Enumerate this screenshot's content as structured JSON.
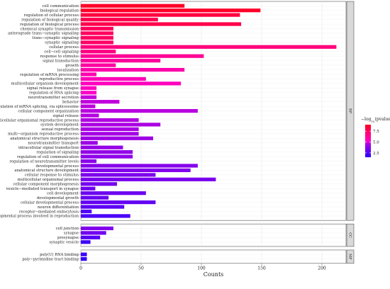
{
  "chart_data": {
    "type": "bar",
    "orientation": "horizontal",
    "xlabel": "Counts",
    "xlim": [
      0,
      220
    ],
    "xticks": [
      0,
      50,
      100,
      150,
      200
    ],
    "color_scale": {
      "legend_title_prefix": "−log",
      "legend_title_sub": "10",
      "legend_title_suffix": "(pvalue)",
      "ticks": [
        7.5,
        5.0,
        2.5
      ],
      "range": [
        1.5,
        9.0
      ],
      "color_high": "#ff0000",
      "color_low": "#0000ff"
    },
    "panels": [
      {
        "strip": "BP",
        "categories": [
          "cell communication",
          "biological regulation",
          "regulation of cellular process",
          "regulation of biological quality",
          "regulation of biological process",
          "chemical synaptic transmission",
          "anterograde trans−synaptic signaling",
          "trans−synaptic signaling",
          "synaptic signaling",
          "cellular process",
          "cell−cell signaling",
          "response to stimulus",
          "signal transduction",
          "growth",
          "localization",
          "regulation of mRNA processing",
          "reproductive process",
          "multicellular organism development",
          "signal release from synapse",
          "regulation of RNA splicing",
          "neurotransmitter secretion",
          "behavior",
          "regulation of mRNA splicing, via spliceosome",
          "cellular component organization",
          "signal release",
          "multicellular organismal reproductive process",
          "system development",
          "sexual reproduction",
          "multi−organism reproductive process",
          "anatomical structure morphogenesis",
          "neurotransmitter transport",
          "intracellular signal transduction",
          "regulation of signaling",
          "regulation of cell communication",
          "regulation of neurotransmitter levels",
          "developmental process",
          "anatomical structure development",
          "cellular response to stimulus",
          "multicellular organismal process",
          "cellular component morphogenesis",
          "vesicle−mediated transport in synapse",
          "cell development",
          "developmental growth",
          "cellular developmental process",
          "neuron differentiation",
          "receptor−mediated endocytosis",
          "developmental process involved in reproduction"
        ],
        "values": [
          86,
          149,
          132,
          64,
          133,
          27,
          27,
          27,
          27,
          212,
          29,
          102,
          66,
          29,
          86,
          13,
          54,
          83,
          13,
          13,
          13,
          32,
          12,
          97,
          15,
          48,
          66,
          48,
          48,
          60,
          14,
          35,
          43,
          43,
          13,
          97,
          91,
          62,
          112,
          30,
          12,
          54,
          23,
          62,
          36,
          9,
          41
        ],
        "pvalue_log10": [
          8.8,
          8.7,
          8.3,
          7.9,
          8.0,
          7.6,
          7.6,
          7.5,
          7.4,
          6.9,
          6.8,
          6.4,
          6.2,
          6.1,
          5.9,
          5.8,
          5.6,
          5.5,
          5.4,
          5.3,
          5.2,
          5.1,
          5.0,
          4.9,
          4.8,
          4.7,
          4.6,
          4.5,
          4.4,
          4.3,
          4.2,
          4.1,
          4.0,
          3.9,
          3.8,
          3.7,
          3.6,
          3.5,
          3.4,
          3.3,
          3.2,
          3.1,
          3.0,
          2.9,
          2.7,
          2.5,
          2.3
        ]
      },
      {
        "strip": "CC",
        "categories": [
          "cell junction",
          "synapse",
          "presynapse",
          "synaptic vesicle"
        ],
        "values": [
          27,
          21,
          16,
          8
        ],
        "pvalue_log10": [
          3.6,
          3.2,
          2.6,
          2.0
        ]
      },
      {
        "strip": "MF",
        "categories": [
          "poly(U) RNA binding",
          "poly−pyrimidine tract binding"
        ],
        "values": [
          5,
          5
        ],
        "pvalue_log10": [
          2.0,
          1.8
        ]
      }
    ]
  }
}
